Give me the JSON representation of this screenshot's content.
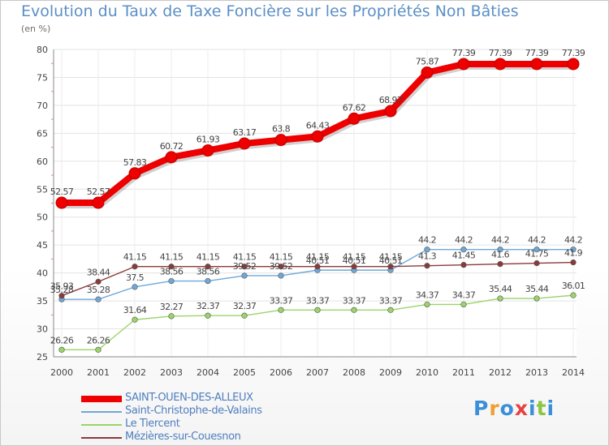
{
  "chart_data": {
    "type": "line",
    "title": "Evolution du Taux de Taxe Foncière sur les Propriétés Non Bâties",
    "ylabel": "(en %)",
    "xlabel": "",
    "ylim": [
      25,
      80
    ],
    "yticks": [
      25,
      30,
      35,
      40,
      45,
      50,
      55,
      60,
      65,
      70,
      75,
      80
    ],
    "categories": [
      "2000",
      "2001",
      "2002",
      "2003",
      "2004",
      "2005",
      "2006",
      "2007",
      "2008",
      "2009",
      "2010",
      "2011",
      "2012",
      "2013",
      "2014"
    ],
    "grid": true,
    "series": [
      {
        "name": "SAINT-OUEN-DES-ALLEUX",
        "color": "#ee0000",
        "values": [
          52.57,
          52.57,
          57.83,
          60.72,
          61.93,
          63.17,
          63.8,
          64.43,
          67.62,
          68.97,
          75.87,
          77.39,
          77.39,
          77.39,
          77.39
        ],
        "labels": [
          "52.57",
          "52.57",
          "57.83",
          "60.72",
          "61.93",
          "63.17",
          "63.8",
          "64.43",
          "67.62",
          "68.97",
          "75.87",
          "77.39",
          "77.39",
          "77.39",
          "77.39"
        ]
      },
      {
        "name": "Saint-Christophe-de-Valains",
        "color": "#6ea8d8",
        "values": [
          35.28,
          35.28,
          37.5,
          38.56,
          38.56,
          39.52,
          39.52,
          40.51,
          40.51,
          40.51,
          44.2,
          44.2,
          44.2,
          44.2,
          44.2
        ],
        "labels": [
          "35.28",
          "35.28",
          "37.5",
          "38.56",
          "38.56",
          "39.52",
          "39.52",
          "40.51",
          "40.51",
          "40.51",
          "44.2",
          "44.2",
          "44.2",
          "44.2",
          "44.2"
        ]
      },
      {
        "name": "Le Tiercent",
        "color": "#9bd46a",
        "values": [
          26.26,
          26.26,
          31.64,
          32.27,
          32.37,
          32.37,
          33.37,
          33.37,
          33.37,
          33.37,
          34.37,
          34.37,
          35.44,
          35.44,
          36.01
        ],
        "labels": [
          "26.26",
          "26.26",
          "31.64",
          "32.27",
          "32.37",
          "32.37",
          "33.37",
          "33.37",
          "33.37",
          "33.37",
          "34.37",
          "34.37",
          "35.44",
          "35.44",
          "36.01"
        ]
      },
      {
        "name": "Mézières-sur-Couesnon",
        "color": "#8b3a3a",
        "values": [
          35.93,
          38.44,
          41.15,
          41.15,
          41.15,
          41.15,
          41.15,
          41.15,
          41.15,
          41.15,
          41.3,
          41.45,
          41.6,
          41.75,
          41.9
        ],
        "labels": [
          "35.93",
          "38.44",
          "41.15",
          "41.15",
          "41.15",
          "41.15",
          "41.15",
          "41.15",
          "41.15",
          "41.15",
          "41.3",
          "41.45",
          "41.6",
          "41.75",
          "41.9"
        ]
      }
    ]
  },
  "logo": {
    "text": "Proxiti",
    "letter_colors": [
      "#3a8fd8",
      "#f0a030",
      "#3a8fd8",
      "#e94040",
      "#3a8fd8",
      "#8cc63f",
      "#3a8fd8"
    ]
  }
}
